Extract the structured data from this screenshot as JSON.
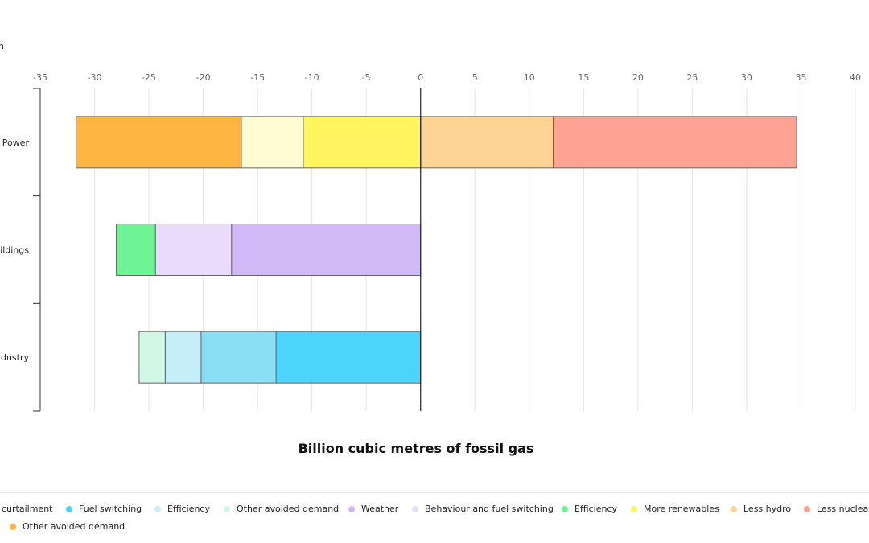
{
  "chart_data": {
    "type": "bar",
    "orientation": "horizontal",
    "stacked": true,
    "xlabel": "Billion cubic metres of fossil gas",
    "ylabel": "",
    "xlim": [
      -35,
      40
    ],
    "xticks": [
      -35,
      -30,
      -25,
      -20,
      -15,
      -10,
      -5,
      0,
      5,
      10,
      15,
      20,
      25,
      30,
      35,
      40
    ],
    "x_axis_position": "top",
    "grid": true,
    "legend_position": "bottom",
    "categories": [
      "Power",
      "Buildings",
      "Industry"
    ],
    "category_labels_visible": [
      "Power",
      "uildings",
      "ndustry"
    ],
    "series": [
      {
        "name": "Fuel switching",
        "category": "Industry",
        "start": 0,
        "end": -13.3,
        "color": "#4dd4fb"
      },
      {
        "name": "Efficiency",
        "category": "Industry",
        "start": -13.3,
        "end": -20.2,
        "color": "#8adff5"
      },
      {
        "name": "Other avoided demand",
        "category": "Industry",
        "start": -20.2,
        "end": -23.5,
        "color": "#c5eef9"
      },
      {
        "name": "",
        "category": "Industry",
        "start": -23.5,
        "end": -25.9,
        "color": "#d0f7e4"
      },
      {
        "name": "Weather",
        "category": "Buildings",
        "start": 0,
        "end": -17.4,
        "color": "#d1b8f6"
      },
      {
        "name": "Behaviour and fuel switching",
        "category": "Buildings",
        "start": -17.4,
        "end": -24.4,
        "color": "#e9dcfa"
      },
      {
        "name": "Efficiency",
        "category": "Buildings",
        "start": -24.4,
        "end": -28.0,
        "color": "#6cf495"
      },
      {
        "name": "More renewables",
        "category": "Power",
        "start": 0,
        "end": -10.8,
        "color": "#fff55f"
      },
      {
        "name": "",
        "category": "Power",
        "start": -10.8,
        "end": -16.5,
        "color": "#fffbd2"
      },
      {
        "name": "Other avoided demand",
        "category": "Power",
        "start": -16.5,
        "end": -31.7,
        "color": "#ffb541"
      },
      {
        "name": "Less hydro",
        "category": "Power",
        "start": 0,
        "end": 12.2,
        "color": "#ffd494"
      },
      {
        "name": "Less nuclear",
        "category": "Power",
        "start": 12.2,
        "end": 34.6,
        "color": "#fea293"
      }
    ]
  },
  "top_left_fragment": "n",
  "legend": {
    "items": [
      {
        "label": "curtailment",
        "color": "",
        "dot": false
      },
      {
        "label": "Fuel switching",
        "color": "#4dd4fb",
        "dot": true
      },
      {
        "label": "Efficiency",
        "color": "#c5eef9",
        "dot": true
      },
      {
        "label": "Other avoided demand",
        "color": "#d0f7e4",
        "dot": true
      },
      {
        "label": "Weather",
        "color": "#d1b8f6",
        "dot": true
      },
      {
        "label": "Behaviour and fuel switching",
        "color": "#e9dcfa",
        "dot": true
      },
      {
        "label": "Efficiency",
        "color": "#6cf495",
        "dot": true
      },
      {
        "label": "More renewables",
        "color": "#fff55f",
        "dot": true
      },
      {
        "label": "Less hydro",
        "color": "#ffd494",
        "dot": true
      },
      {
        "label": "Less nuclear",
        "color": "#fea293",
        "dot": true
      },
      {
        "label": "Other avoided demand",
        "color": "#ffb541",
        "dot": true
      }
    ]
  }
}
